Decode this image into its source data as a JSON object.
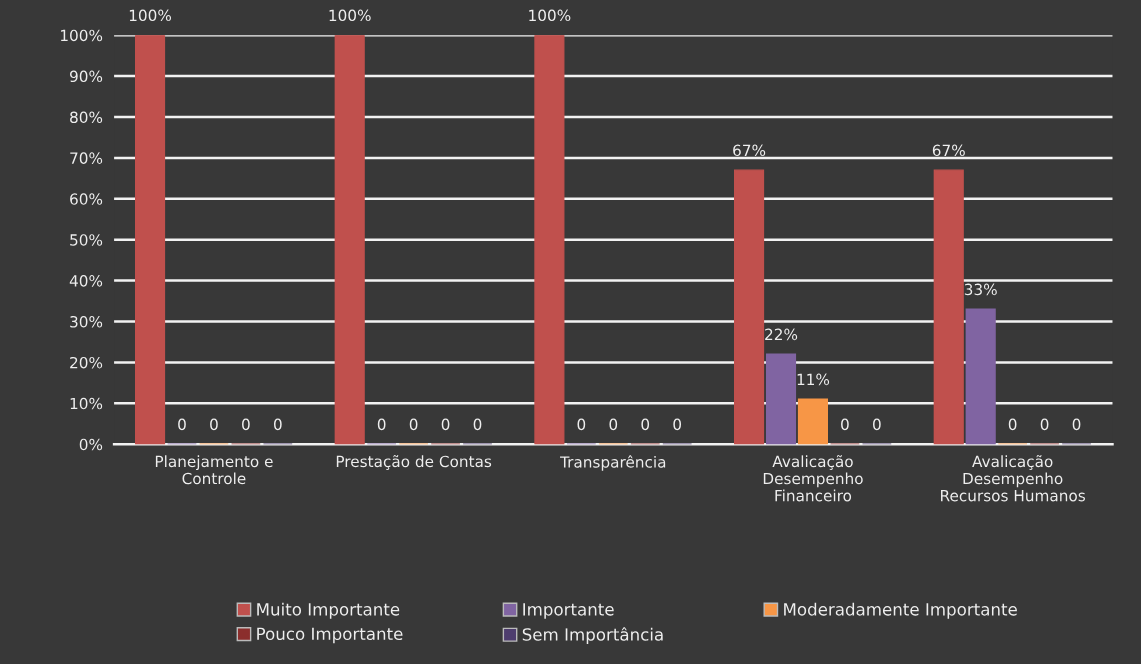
{
  "chart_data": {
    "type": "bar",
    "categories": [
      "Planejamento e\nControle",
      "Prestação de Contas",
      "Transparência",
      "Avalicação\nDesempenho\nFinanceiro",
      "Avalicação\nDesempenho\nRecursos Humanos"
    ],
    "series": [
      {
        "name": "Muito Importante",
        "color": "#c0504d",
        "values": [
          100,
          100,
          100,
          67,
          67
        ],
        "value_labels": [
          "100%",
          "100%",
          "100%",
          "67%",
          "67%"
        ]
      },
      {
        "name": "Importante",
        "color": "#8064a2",
        "values": [
          0,
          0,
          0,
          22,
          33
        ],
        "value_labels": [
          "0",
          "0",
          "0",
          "22%",
          "33%"
        ]
      },
      {
        "name": "Moderadamente Importante",
        "color": "#f79646",
        "values": [
          0,
          0,
          0,
          11,
          0
        ],
        "value_labels": [
          "0",
          "0",
          "0",
          "11%",
          "0"
        ]
      },
      {
        "name": "Pouco Importante",
        "color": "#8b2e2c",
        "values": [
          0,
          0,
          0,
          0,
          0
        ],
        "value_labels": [
          "0",
          "0",
          "0",
          "0",
          "0"
        ]
      },
      {
        "name": "Sem Importância",
        "color": "#4e3d6e",
        "values": [
          0,
          0,
          0,
          0,
          0
        ],
        "value_labels": [
          "0",
          "0",
          "0",
          "0",
          "0"
        ]
      }
    ],
    "ylim": [
      0,
      100
    ],
    "yticks": [
      {
        "value": 0,
        "label": "0%"
      },
      {
        "value": 10,
        "label": "10%"
      },
      {
        "value": 20,
        "label": "20%"
      },
      {
        "value": 30,
        "label": "30%"
      },
      {
        "value": 40,
        "label": "40%"
      },
      {
        "value": 50,
        "label": "50%"
      },
      {
        "value": 60,
        "label": "60%"
      },
      {
        "value": 70,
        "label": "70%"
      },
      {
        "value": 80,
        "label": "80%"
      },
      {
        "value": 90,
        "label": "90%"
      },
      {
        "value": 100,
        "label": "100%"
      }
    ],
    "grid": "y",
    "legend": "bottom"
  }
}
